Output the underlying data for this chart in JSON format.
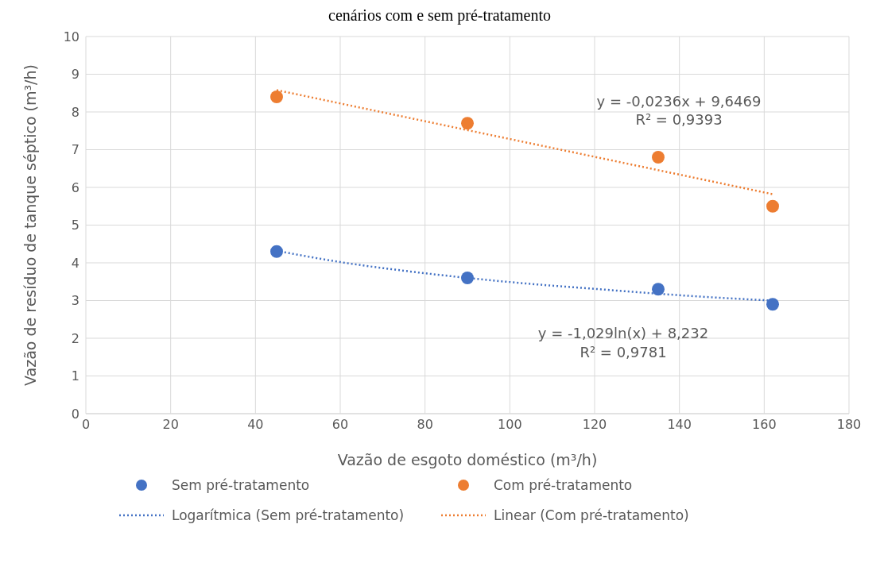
{
  "chart_data": {
    "type": "scatter",
    "title": "cenários com e sem pré-tratamento",
    "xlabel": "Vazão de esgoto doméstico (m³/h)",
    "ylabel": "Vazão de resíduo de tanque séptico (m³/h)",
    "xlim": [
      0,
      180
    ],
    "xticks": [
      0,
      20,
      40,
      60,
      80,
      100,
      120,
      140,
      160,
      180
    ],
    "ylim": [
      0,
      10
    ],
    "yticks": [
      0,
      1,
      2,
      3,
      4,
      5,
      6,
      7,
      8,
      9,
      10
    ],
    "grid": true,
    "legend": "bottom",
    "series": [
      {
        "name": "Sem pré-tratamento",
        "marker": "circle",
        "color": "#4472c4",
        "x": [
          45,
          90,
          135,
          162
        ],
        "values": [
          4.3,
          3.6,
          3.3,
          2.9
        ]
      },
      {
        "name": "Com pré-tratamento",
        "marker": "circle",
        "color": "#ed7d31",
        "x": [
          45,
          90,
          135,
          162
        ],
        "values": [
          8.4,
          7.7,
          6.8,
          5.5
        ]
      },
      {
        "name": "Logarítmica (Sem pré-tratamento)",
        "type": "line",
        "marker": "none",
        "line_style": "dotted",
        "color": "#4472c4",
        "x": [
          45,
          60,
          75,
          90,
          105,
          120,
          135,
          150,
          162
        ],
        "values": [
          4.32,
          4.02,
          3.79,
          3.6,
          3.44,
          3.31,
          3.18,
          3.07,
          3.0
        ]
      },
      {
        "name": "Linear (Com pré-tratamento)",
        "type": "line",
        "marker": "none",
        "line_style": "dotted",
        "color": "#ed7d31",
        "x": [
          45,
          162
        ],
        "values": [
          8.58,
          5.82
        ]
      }
    ],
    "annotations": [
      "y = -0,0236x + 9,6469",
      "R² = 0,9393",
      "y = -1,029ln(x) + 8,232",
      "R² = 0,9781"
    ]
  }
}
